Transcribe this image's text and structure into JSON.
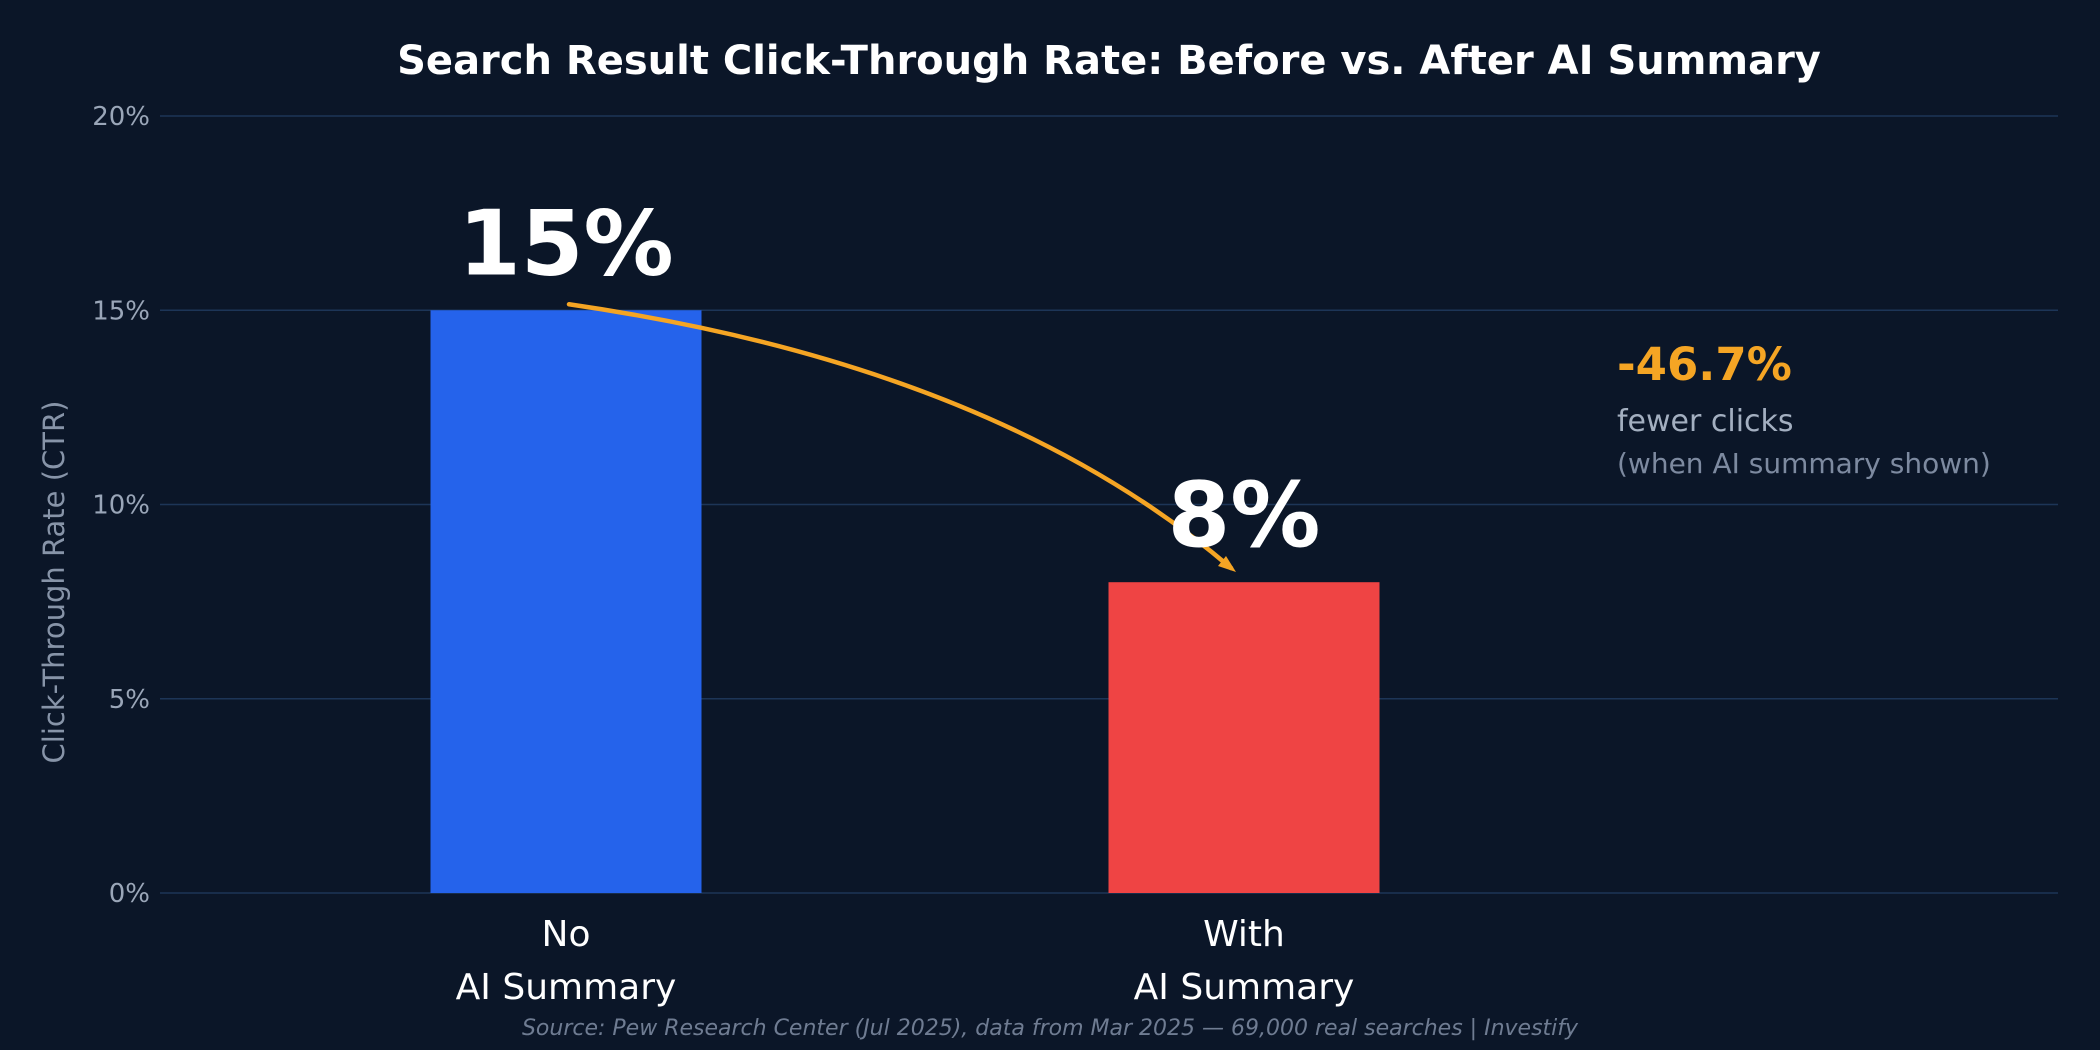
{
  "chart_data": {
    "type": "bar",
    "title": "Search Result Click-Through Rate: Before vs. After AI Summary",
    "ylabel": "Click-Through Rate (CTR)",
    "xlabel": "",
    "ylim": [
      0,
      20
    ],
    "yticks": [
      0,
      5,
      10,
      15,
      20
    ],
    "ytick_labels": [
      "0%",
      "5%",
      "10%",
      "15%",
      "20%"
    ],
    "grid": true,
    "categories": [
      [
        "No",
        "AI Summary"
      ],
      [
        "With",
        "AI Summary"
      ]
    ],
    "values": [
      15,
      8
    ],
    "value_labels": [
      "15%",
      "8%"
    ],
    "colors": [
      "#2563eb",
      "#ef4444"
    ],
    "arrow_color": "#f5a524",
    "annotation": {
      "change": "-46.7%",
      "line1": "fewer clicks",
      "line2": "(when AI summary shown)",
      "color": "#f5a524"
    },
    "source": "Source: Pew Research Center (Jul 2025), data from Mar 2025 — 69,000 real searches | Investify"
  }
}
